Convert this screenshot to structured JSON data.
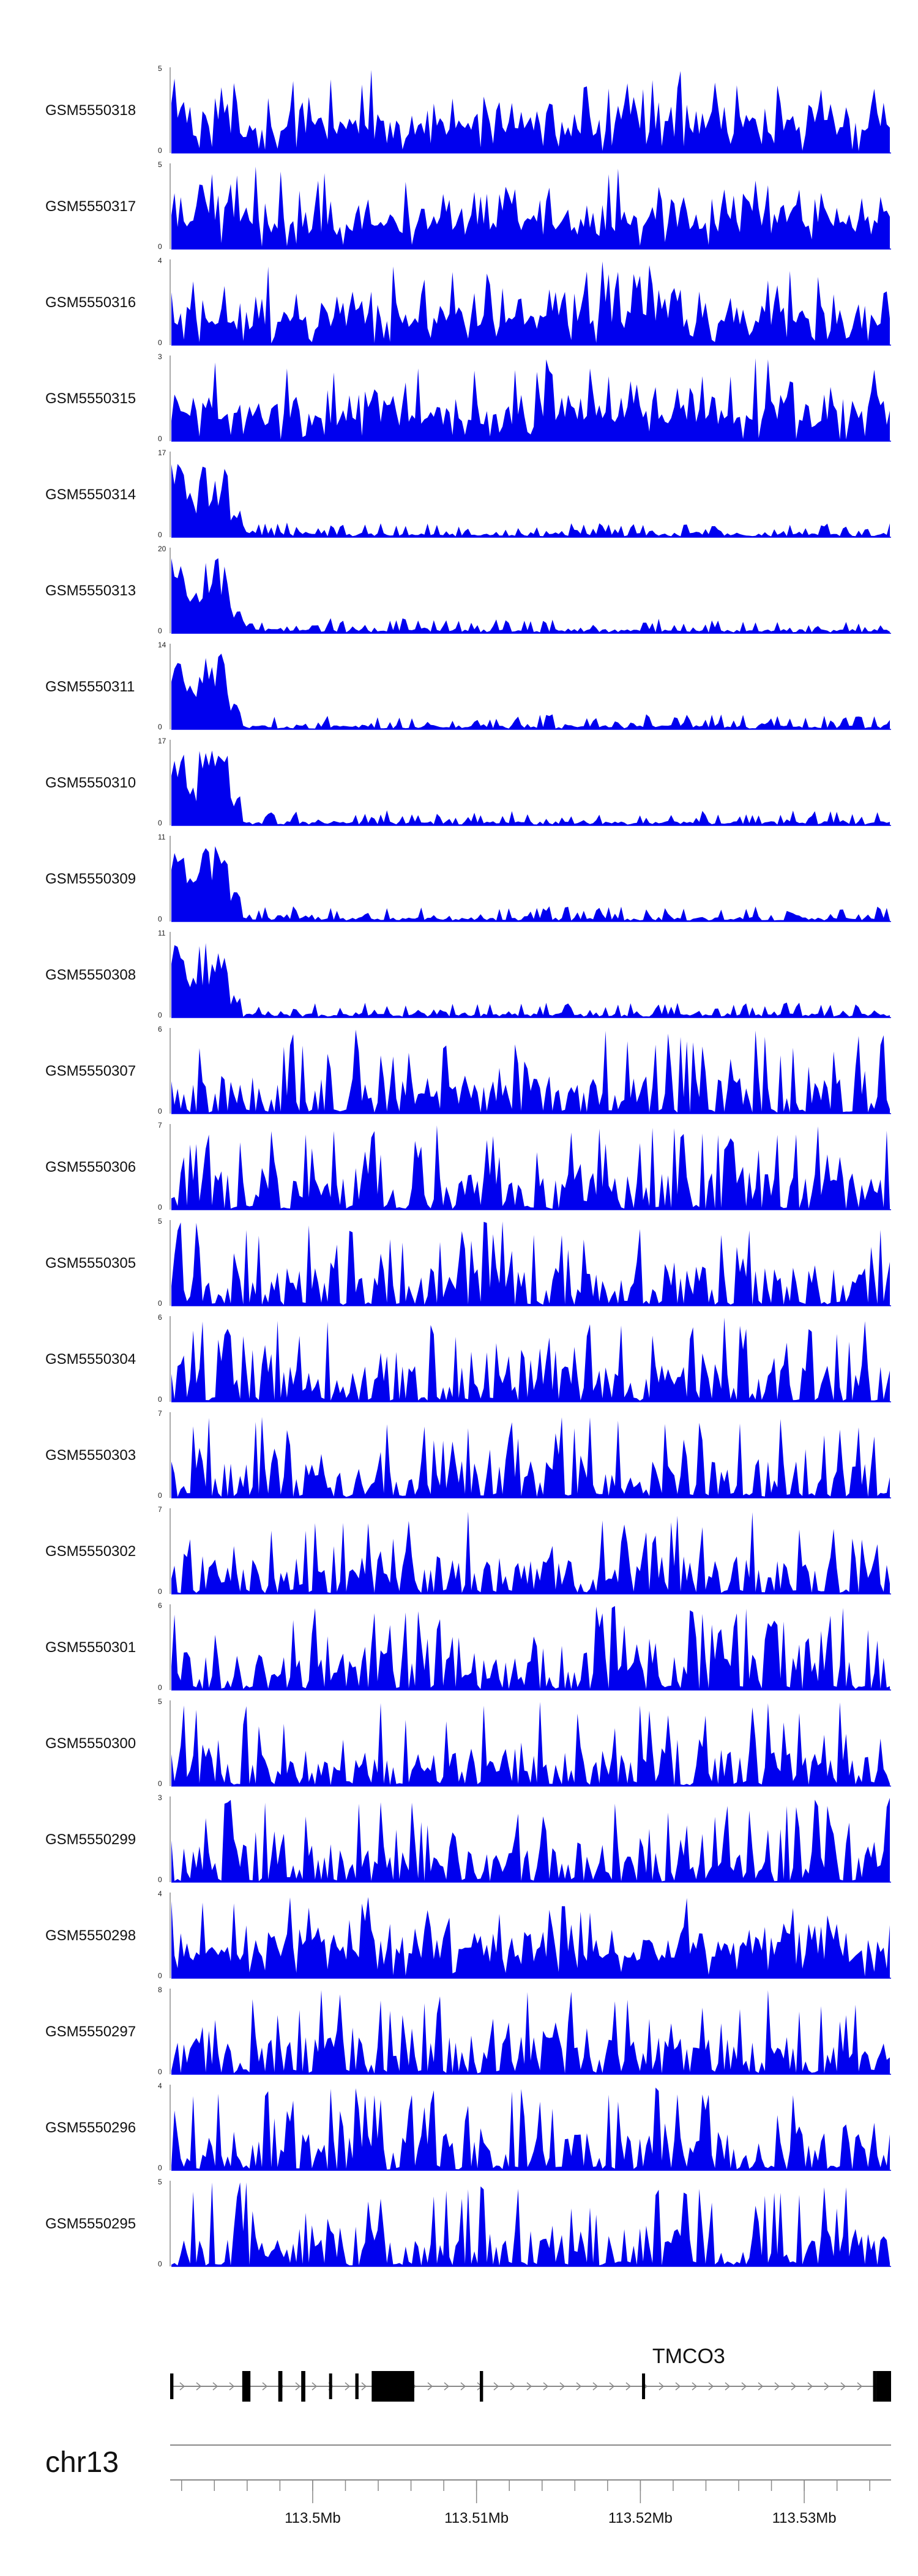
{
  "chart_data": {
    "type": "area",
    "chromosome": "chr13",
    "xlim": [
      113.4913,
      113.5353
    ],
    "x_axis": {
      "major_ticks": [
        {
          "value": 113.5,
          "label": "113.5Mb"
        },
        {
          "value": 113.51,
          "label": "113.51Mb"
        },
        {
          "value": 113.52,
          "label": "113.52Mb"
        },
        {
          "value": 113.53,
          "label": "113.53Mb"
        }
      ],
      "minor_tick_step": 0.002
    },
    "tracks": [
      {
        "name": "GSM5550318",
        "ylim": [
          0,
          5
        ],
        "fill": "#0000ee",
        "profile": "flat"
      },
      {
        "name": "GSM5550317",
        "ylim": [
          0,
          5
        ],
        "fill": "#0000ee",
        "profile": "flat"
      },
      {
        "name": "GSM5550316",
        "ylim": [
          0,
          4
        ],
        "fill": "#0000ee",
        "profile": "flat"
      },
      {
        "name": "GSM5550315",
        "ylim": [
          0,
          3
        ],
        "fill": "#0000ee",
        "profile": "flat"
      },
      {
        "name": "GSM5550314",
        "ylim": [
          0,
          17
        ],
        "fill": "#0000ee",
        "profile": "peak"
      },
      {
        "name": "GSM5550313",
        "ylim": [
          0,
          20
        ],
        "fill": "#0000ee",
        "profile": "peak"
      },
      {
        "name": "GSM5550311",
        "ylim": [
          0,
          14
        ],
        "fill": "#0000ee",
        "profile": "peak"
      },
      {
        "name": "GSM5550310",
        "ylim": [
          0,
          17
        ],
        "fill": "#0000ee",
        "profile": "peak"
      },
      {
        "name": "GSM5550309",
        "ylim": [
          0,
          11
        ],
        "fill": "#0000ee",
        "profile": "peak"
      },
      {
        "name": "GSM5550308",
        "ylim": [
          0,
          11
        ],
        "fill": "#0000ee",
        "profile": "peak"
      },
      {
        "name": "GSM5550307",
        "ylim": [
          0,
          6
        ],
        "fill": "#0000ee",
        "profile": "sparse"
      },
      {
        "name": "GSM5550306",
        "ylim": [
          0,
          7
        ],
        "fill": "#0000ee",
        "profile": "sparse"
      },
      {
        "name": "GSM5550305",
        "ylim": [
          0,
          5
        ],
        "fill": "#0000ee",
        "profile": "sparse"
      },
      {
        "name": "GSM5550304",
        "ylim": [
          0,
          6
        ],
        "fill": "#0000ee",
        "profile": "sparse"
      },
      {
        "name": "GSM5550303",
        "ylim": [
          0,
          7
        ],
        "fill": "#0000ee",
        "profile": "sparse"
      },
      {
        "name": "GSM5550302",
        "ylim": [
          0,
          7
        ],
        "fill": "#0000ee",
        "profile": "sparse"
      },
      {
        "name": "GSM5550301",
        "ylim": [
          0,
          6
        ],
        "fill": "#0000ee",
        "profile": "sparse"
      },
      {
        "name": "GSM5550300",
        "ylim": [
          0,
          5
        ],
        "fill": "#0000ee",
        "profile": "sparse"
      },
      {
        "name": "GSM5550299",
        "ylim": [
          0,
          3
        ],
        "fill": "#0000ee",
        "profile": "sparse"
      },
      {
        "name": "GSM5550298",
        "ylim": [
          0,
          4
        ],
        "fill": "#0000ee",
        "profile": "flat"
      },
      {
        "name": "GSM5550297",
        "ylim": [
          0,
          8
        ],
        "fill": "#0000ee",
        "profile": "sparse"
      },
      {
        "name": "GSM5550296",
        "ylim": [
          0,
          4
        ],
        "fill": "#0000ee",
        "profile": "sparse"
      },
      {
        "name": "GSM5550295",
        "ylim": [
          0,
          5
        ],
        "fill": "#0000ee",
        "profile": "sparse"
      }
    ],
    "gene_track": {
      "gene": "TMCO3",
      "gene_label_position": 113.5211,
      "start": 113.4913,
      "end": 113.5353,
      "strand": "+",
      "exons": [
        {
          "start": 113.4913,
          "end": 113.4915,
          "thick": false
        },
        {
          "start": 113.4957,
          "end": 113.4962,
          "thick": true
        },
        {
          "start": 113.4979,
          "end": 113.49815,
          "thick": true
        },
        {
          "start": 113.4993,
          "end": 113.49955,
          "thick": true
        },
        {
          "start": 113.501,
          "end": 113.50115,
          "thick": false
        },
        {
          "start": 113.5026,
          "end": 113.5028,
          "thick": false
        },
        {
          "start": 113.5036,
          "end": 113.5062,
          "thick": true
        },
        {
          "start": 113.5102,
          "end": 113.5104,
          "thick": true
        },
        {
          "start": 113.5201,
          "end": 113.52025,
          "thick": false
        },
        {
          "start": 113.5342,
          "end": 113.5344,
          "thick": true
        },
        {
          "start": 113.5344,
          "end": 113.5353,
          "thick": true
        }
      ]
    }
  }
}
